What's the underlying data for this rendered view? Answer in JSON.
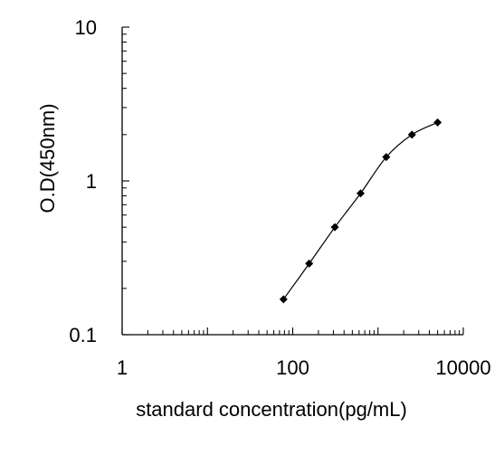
{
  "chart_data": {
    "type": "scatter",
    "title": "",
    "xlabel": "standard concentration(pg/mL)",
    "ylabel": "O.D(450nm)",
    "x_scale": "log",
    "y_scale": "log",
    "xlim": [
      1,
      10000
    ],
    "ylim": [
      0.1,
      10
    ],
    "x_tick_labels": [
      "1",
      "100",
      "10000"
    ],
    "x_tick_values": [
      1,
      100,
      10000
    ],
    "y_tick_labels": [
      "10",
      "1",
      "0.1"
    ],
    "y_tick_values": [
      10,
      1,
      0.1
    ],
    "grid": false,
    "series": [
      {
        "x": [
          78,
          156,
          312,
          625,
          1250,
          2500,
          5000
        ],
        "y": [
          0.17,
          0.29,
          0.5,
          0.83,
          1.43,
          2.0,
          2.4
        ]
      }
    ],
    "marker_color": "#000000",
    "line_color": "#000000"
  }
}
